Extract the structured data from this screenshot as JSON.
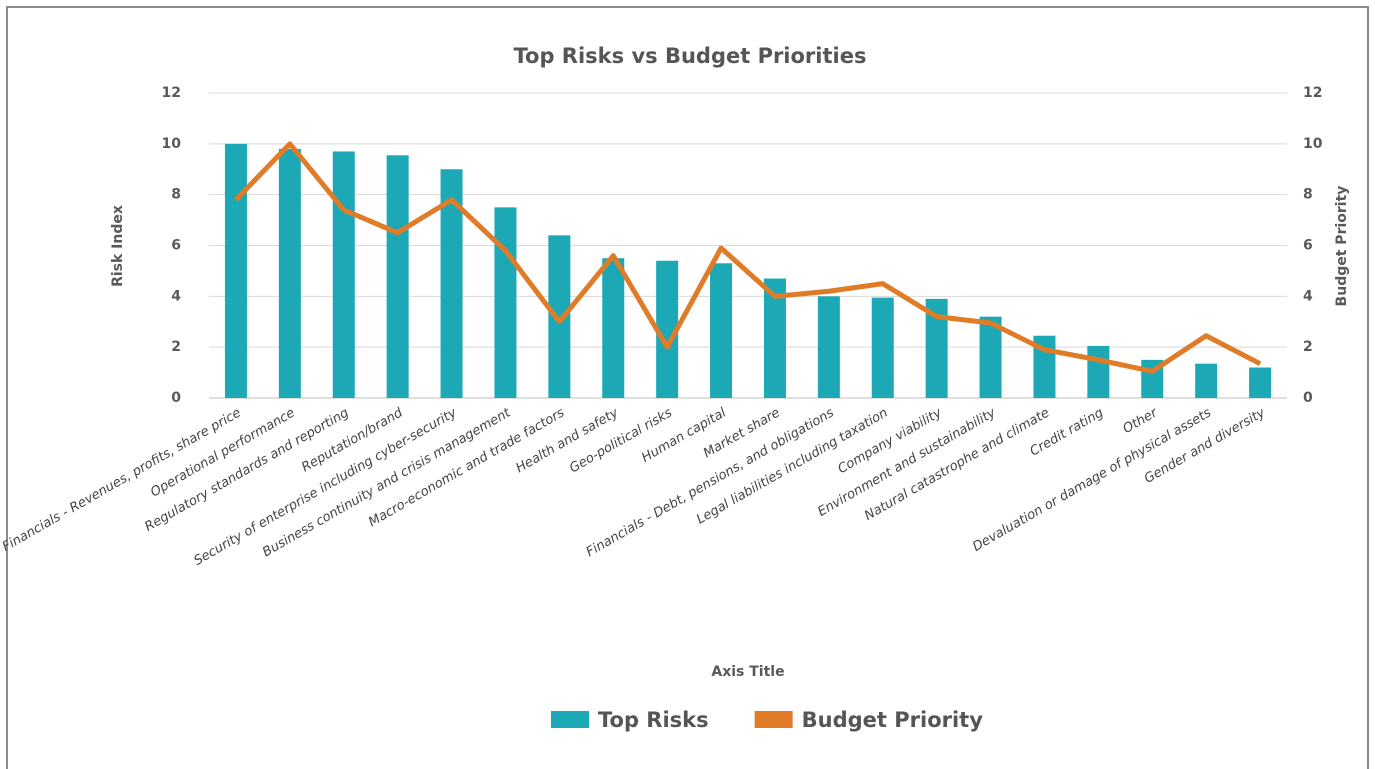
{
  "chart_data": {
    "type": "bar_line",
    "title": "Top Risks vs Budget Priorities",
    "x_label": "Axis Title",
    "y_label": "Risk Index",
    "y2_label": "Budget Priority",
    "categories": [
      "Financials - Revenues, profits, share price",
      "Operational performance",
      "Regulatory standards and reporting",
      "Reputation/brand",
      "Security of enterprise including cyber-security",
      "Business continuity and crisis management",
      "Macro-economic and trade factors",
      "Health and safety",
      "Geo-political risks",
      "Human capital",
      "Market share",
      "Financials - Debt, pensions, and obligations",
      "Legal liabilities including taxation",
      "Company viability",
      "Environment and sustainability",
      "Natural catastrophe and climate",
      "Credit rating",
      "Other",
      "Devaluation or damage of physical assets",
      "Gender and diversity"
    ],
    "series": [
      {
        "name": "Top Risks",
        "type": "bar",
        "color": "#1ca8b5",
        "values": [
          10,
          9.8,
          9.7,
          9.55,
          9.0,
          7.5,
          6.4,
          5.5,
          5.4,
          5.3,
          4.7,
          4.0,
          3.95,
          3.9,
          3.2,
          2.45,
          2.05,
          1.5,
          1.35,
          1.2
        ]
      },
      {
        "name": "Budget Priority",
        "type": "line",
        "axis": "y2",
        "color": "#e07b28",
        "values": [
          7.8,
          10,
          7.4,
          6.5,
          7.8,
          5.8,
          3.0,
          5.6,
          2.0,
          5.9,
          4.0,
          4.2,
          4.5,
          3.2,
          2.95,
          1.9,
          1.5,
          1.05,
          2.45,
          1.35
        ]
      }
    ],
    "ylim": [
      0,
      12
    ],
    "yticks": [
      0,
      2,
      4,
      6,
      8,
      10,
      12
    ],
    "y2lim": [
      0,
      12
    ],
    "y2ticks": [
      0,
      2,
      4,
      6,
      8,
      10,
      12
    ],
    "grid": true,
    "legend": "bottom"
  }
}
